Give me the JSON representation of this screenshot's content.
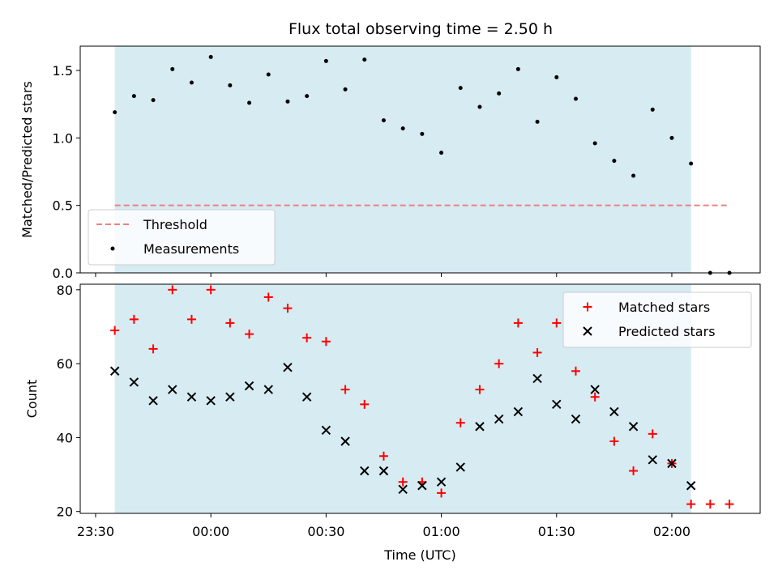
{
  "chart_data": [
    {
      "type": "scatter",
      "title": "Flux total observing time = 2.50 h",
      "xlabel": "",
      "ylabel": "Matched/Predicted stars",
      "xlim": [
        "23:26",
        "02:23"
      ],
      "ylim": [
        0,
        1.68
      ],
      "yticks": [
        0.0,
        0.5,
        1.0,
        1.5
      ],
      "ytick_labels": [
        "0.0",
        "0.5",
        "1.0",
        "1.5"
      ],
      "xticks": [
        "23:30",
        "00:00",
        "00:30",
        "01:00",
        "01:30",
        "02:00"
      ],
      "shaded_span": [
        "23:35",
        "02:05"
      ],
      "legend_position": "lower-left",
      "threshold": {
        "name": "Threshold",
        "value": 0.5,
        "x_range": [
          "23:35",
          "02:15"
        ],
        "color": "#f08080"
      },
      "series": [
        {
          "name": "Measurements",
          "color": "#000000",
          "x": [
            "23:35",
            "23:40",
            "23:45",
            "23:50",
            "23:55",
            "00:00",
            "00:05",
            "00:10",
            "00:15",
            "00:20",
            "00:25",
            "00:30",
            "00:35",
            "00:40",
            "00:45",
            "00:50",
            "00:55",
            "01:00",
            "01:05",
            "01:10",
            "01:15",
            "01:20",
            "01:25",
            "01:30",
            "01:35",
            "01:40",
            "01:45",
            "01:50",
            "01:55",
            "02:00",
            "02:05",
            "02:10",
            "02:15"
          ],
          "y": [
            1.19,
            1.31,
            1.28,
            1.51,
            1.41,
            1.6,
            1.39,
            1.26,
            1.47,
            1.27,
            1.31,
            1.57,
            1.36,
            1.58,
            1.13,
            1.07,
            1.03,
            0.89,
            1.37,
            1.23,
            1.33,
            1.51,
            1.12,
            1.45,
            1.29,
            0.96,
            0.83,
            0.72,
            1.21,
            1.0,
            0.81,
            0.0,
            0.0
          ]
        }
      ]
    },
    {
      "type": "scatter",
      "title": "",
      "xlabel": "Time (UTC)",
      "ylabel": "Count",
      "xlim": [
        "23:26",
        "02:23"
      ],
      "ylim": [
        19.5,
        81.5
      ],
      "yticks": [
        20,
        40,
        60,
        80
      ],
      "ytick_labels": [
        "20",
        "40",
        "60",
        "80"
      ],
      "xticks": [
        "23:30",
        "00:00",
        "00:30",
        "01:00",
        "01:30",
        "02:00"
      ],
      "xtick_labels": [
        "23:30",
        "00:00",
        "00:30",
        "01:00",
        "01:30",
        "02:00"
      ],
      "shaded_span": [
        "23:35",
        "02:05"
      ],
      "legend_position": "upper-right",
      "series": [
        {
          "name": "Matched stars",
          "marker": "plus",
          "color": "#ff0000",
          "x": [
            "23:35",
            "23:40",
            "23:45",
            "23:50",
            "23:55",
            "00:00",
            "00:05",
            "00:10",
            "00:15",
            "00:20",
            "00:25",
            "00:30",
            "00:35",
            "00:40",
            "00:45",
            "00:50",
            "00:55",
            "01:00",
            "01:05",
            "01:10",
            "01:15",
            "01:20",
            "01:25",
            "01:30",
            "01:35",
            "01:40",
            "01:45",
            "01:50",
            "01:55",
            "02:00",
            "02:05",
            "02:10",
            "02:15"
          ],
          "y": [
            69,
            72,
            64,
            80,
            72,
            80,
            71,
            68,
            78,
            75,
            67,
            66,
            53,
            49,
            35,
            28,
            28,
            25,
            44,
            53,
            60,
            71,
            63,
            71,
            58,
            51,
            39,
            31,
            41,
            33,
            22,
            22,
            22
          ]
        },
        {
          "name": "Predicted stars",
          "marker": "x",
          "color": "#000000",
          "x": [
            "23:35",
            "23:40",
            "23:45",
            "23:50",
            "23:55",
            "00:00",
            "00:05",
            "00:10",
            "00:15",
            "00:20",
            "00:25",
            "00:30",
            "00:35",
            "00:40",
            "00:45",
            "00:50",
            "00:55",
            "01:00",
            "01:05",
            "01:10",
            "01:15",
            "01:20",
            "01:25",
            "01:30",
            "01:35",
            "01:40",
            "01:45",
            "01:50",
            "01:55",
            "02:00",
            "02:05"
          ],
          "y": [
            58,
            55,
            50,
            53,
            51,
            50,
            51,
            54,
            53,
            59,
            51,
            42,
            39,
            31,
            31,
            26,
            27,
            28,
            32,
            43,
            45,
            47,
            56,
            49,
            45,
            53,
            47,
            43,
            34,
            33,
            27
          ]
        }
      ]
    }
  ]
}
